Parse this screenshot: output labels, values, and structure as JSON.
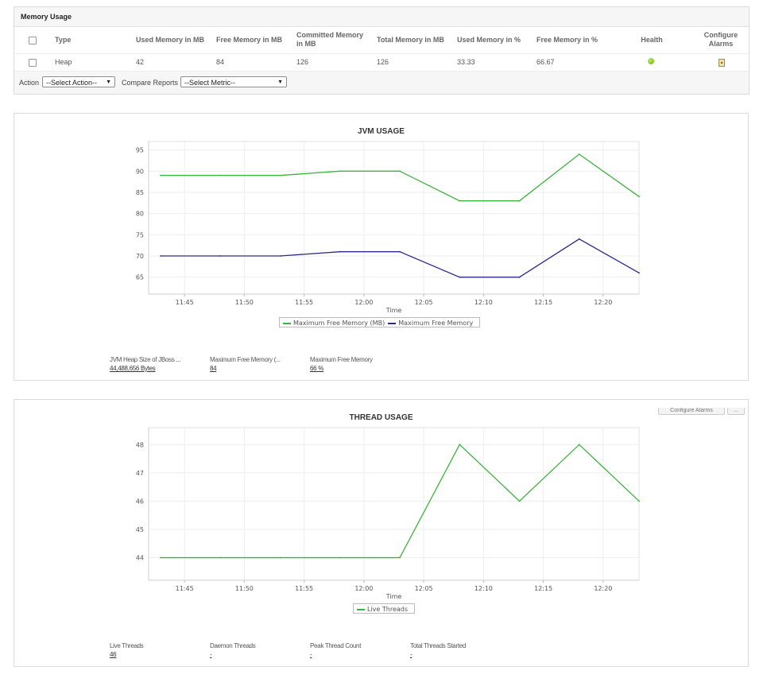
{
  "memory": {
    "title": "Memory Usage",
    "columns": {
      "type": "Type",
      "used_mb": "Used Memory in MB",
      "free_mb": "Free Memory in MB",
      "committed_line1": "Committed Memory",
      "committed_line2": "in MB",
      "total_mb": "Total Memory in MB",
      "used_pct": "Used Memory in %",
      "free_pct": "Free Memory in %",
      "health": "Health",
      "alarms_line1": "Configure",
      "alarms_line2": "Alarms"
    },
    "row": {
      "type": "Heap",
      "used_mb": "42",
      "free_mb": "84",
      "committed_mb": "126",
      "total_mb": "126",
      "used_pct": "33.33",
      "free_pct": "66.67",
      "health": "ok-icon",
      "alarms": "alarm-config-icon"
    },
    "action_label": "Action",
    "action_select": "--Select Action--",
    "compare_label": "Compare Reports",
    "compare_select": "--Select Metric--"
  },
  "jvm": {
    "title": "JVM USAGE",
    "stats": [
      {
        "label": "JVM Heap Size of JBoss ...",
        "value": "44,488,656 Bytes"
      },
      {
        "label": "Maximum Free Memory (...",
        "value": "84"
      },
      {
        "label": "Maximum Free Memory",
        "value": "66 %"
      }
    ]
  },
  "thread": {
    "title": "THREAD USAGE",
    "top_buttons": [
      "Configure Alarms",
      "..."
    ],
    "stats": [
      {
        "label": "Live Threads",
        "value": "46"
      },
      {
        "label": "Daemon Threads",
        "value": "-"
      },
      {
        "label": "Peak Thread Count",
        "value": "-"
      },
      {
        "label": "Total Threads Started",
        "value": "-"
      }
    ]
  },
  "chart_data": [
    {
      "type": "line",
      "title": "JVM USAGE",
      "xlabel": "Time",
      "ylabel": "",
      "x_ticks": [
        "11:45",
        "11:50",
        "11:55",
        "12:00",
        "12:05",
        "12:10",
        "12:15",
        "12:20"
      ],
      "y_ticks": [
        65,
        70,
        75,
        80,
        85,
        90,
        95
      ],
      "xlim": [
        "11:42",
        "12:23"
      ],
      "ylim": [
        61,
        97
      ],
      "grid": true,
      "legend": "bottom-center",
      "x": [
        "11:43",
        "11:48",
        "11:53",
        "11:58",
        "12:03",
        "12:08",
        "12:13",
        "12:18",
        "12:23"
      ],
      "series": [
        {
          "name": "Maximum Free Memory (MB)",
          "color": "#3cb33c",
          "values": [
            89,
            89,
            89,
            90,
            90,
            83,
            83,
            94,
            84
          ]
        },
        {
          "name": "Maximum Free Memory",
          "color": "#2b2b8c",
          "values": [
            70,
            70,
            70,
            71,
            71,
            65,
            65,
            74,
            66
          ]
        }
      ]
    },
    {
      "type": "line",
      "title": "THREAD USAGE",
      "xlabel": "Time",
      "ylabel": "",
      "x_ticks": [
        "11:45",
        "11:50",
        "11:55",
        "12:00",
        "12:05",
        "12:10",
        "12:15",
        "12:20"
      ],
      "y_ticks": [
        44,
        45,
        46,
        47,
        48
      ],
      "xlim": [
        "11:42",
        "12:23"
      ],
      "ylim": [
        43.2,
        48.6
      ],
      "grid": true,
      "legend": "bottom-center",
      "x": [
        "11:43",
        "11:48",
        "11:53",
        "11:58",
        "12:03",
        "12:08",
        "12:13",
        "12:18",
        "12:23"
      ],
      "series": [
        {
          "name": "Live Threads",
          "color": "#3cb33c",
          "values": [
            44,
            44,
            44,
            44,
            44,
            48,
            46,
            48,
            46
          ]
        }
      ]
    }
  ]
}
